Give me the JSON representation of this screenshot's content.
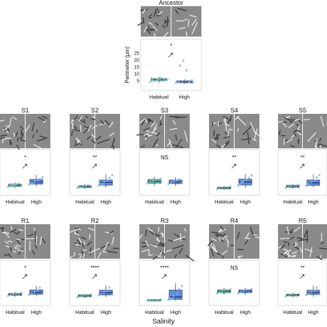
{
  "figure": {
    "xlabel": "Salinity",
    "colors": {
      "habitual_box": "#4fa8a0",
      "habitual_point": "#7cc6bf",
      "high_box": "#3f7ad9",
      "high_point": "#8ab0e8",
      "median": "#1b2f66",
      "frame": "#d0d0d0"
    }
  },
  "chart_data": [
    {
      "type": "box",
      "panel": "Ancestor",
      "title": "Ancestor",
      "ylabel": "Perimeter (µm)",
      "yticks": [
        5,
        10,
        15,
        20,
        25
      ],
      "ylim": [
        0,
        28
      ],
      "categories": [
        "Habitual",
        "High"
      ],
      "significance": "*",
      "trend": "up",
      "series": [
        {
          "category": "Habitual",
          "q1": 5.0,
          "median": 5.8,
          "q3": 6.5,
          "whisker_low": 3.5,
          "whisker_high": 7.8,
          "points": [
            4.2,
            5.1,
            5.6,
            6.0,
            6.3,
            5.4,
            6.8,
            4.9,
            5.9,
            7.1,
            5.2,
            6.1,
            5.7
          ]
        },
        {
          "category": "High",
          "q1": 3.5,
          "median": 4.2,
          "q3": 5.0,
          "whisker_low": 2.8,
          "whisker_high": 6.0,
          "points": [
            3.6,
            4.0,
            4.4,
            4.8,
            3.9,
            5.2,
            4.1,
            16.0,
            19.5,
            12.5,
            4.6,
            3.8
          ]
        }
      ]
    },
    {
      "type": "box",
      "panel": "S1",
      "title": "S1",
      "categories": [
        "Habitual",
        "High"
      ],
      "significance": "*",
      "trend": "up",
      "series": [
        {
          "category": "Habitual",
          "q1": 0.28,
          "median": 0.33,
          "q3": 0.38,
          "whisker_low": 0.2,
          "whisker_high": 0.45,
          "points": [
            0.25,
            0.3,
            0.34,
            0.36,
            0.4,
            0.31,
            0.28,
            0.38,
            0.33
          ]
        },
        {
          "category": "High",
          "q1": 0.38,
          "median": 0.48,
          "q3": 0.6,
          "whisker_low": 0.28,
          "whisker_high": 0.8,
          "points": [
            0.35,
            0.42,
            0.5,
            0.55,
            0.62,
            0.7,
            0.45,
            0.4
          ]
        }
      ]
    },
    {
      "type": "box",
      "panel": "S2",
      "title": "S2",
      "categories": [
        "Habitual",
        "High"
      ],
      "significance": "**",
      "trend": "up",
      "series": [
        {
          "category": "Habitual",
          "q1": 0.28,
          "median": 0.34,
          "q3": 0.4,
          "whisker_low": 0.2,
          "whisker_high": 0.5,
          "points": [
            0.26,
            0.31,
            0.35,
            0.38,
            0.42,
            0.3,
            0.36
          ]
        },
        {
          "category": "High",
          "q1": 0.42,
          "median": 0.58,
          "q3": 0.72,
          "whisker_low": 0.28,
          "whisker_high": 1.05,
          "points": [
            0.4,
            0.5,
            0.62,
            0.7,
            0.85,
            1.0,
            0.55,
            0.45
          ]
        }
      ]
    },
    {
      "type": "box",
      "panel": "S3",
      "title": "S3",
      "categories": [
        "Habitual",
        "High"
      ],
      "significance": "NS",
      "trend": "",
      "series": [
        {
          "category": "Habitual",
          "q1": 0.28,
          "median": 0.34,
          "q3": 0.4,
          "whisker_low": 0.2,
          "whisker_high": 0.48,
          "points": [
            0.27,
            0.32,
            0.36,
            0.38,
            0.3,
            0.42
          ]
        },
        {
          "category": "High",
          "q1": 0.27,
          "median": 0.32,
          "q3": 0.38,
          "whisker_low": 0.2,
          "whisker_high": 0.46,
          "points": [
            0.26,
            0.3,
            0.34,
            0.36,
            0.4,
            0.29
          ]
        }
      ]
    },
    {
      "type": "box",
      "panel": "S4",
      "title": "S4",
      "categories": [
        "Habitual",
        "High"
      ],
      "significance": "**",
      "trend": "up",
      "series": [
        {
          "category": "Habitual",
          "q1": 0.24,
          "median": 0.3,
          "q3": 0.36,
          "whisker_low": 0.18,
          "whisker_high": 0.44,
          "points": [
            0.22,
            0.28,
            0.32,
            0.35,
            0.26,
            0.4
          ]
        },
        {
          "category": "High",
          "q1": 0.5,
          "median": 0.7,
          "q3": 0.9,
          "whisker_low": 0.3,
          "whisker_high": 1.25,
          "points": [
            0.45,
            0.6,
            0.75,
            0.85,
            1.0,
            1.15,
            0.55,
            0.68
          ]
        }
      ]
    },
    {
      "type": "box",
      "panel": "S5",
      "title": "S5",
      "categories": [
        "Habitual",
        "High"
      ],
      "significance": "**",
      "trend": "up",
      "series": [
        {
          "category": "Habitual",
          "q1": 0.3,
          "median": 0.36,
          "q3": 0.44,
          "whisker_low": 0.22,
          "whisker_high": 0.52,
          "points": [
            0.28,
            0.34,
            0.38,
            0.42,
            0.32,
            0.46
          ]
        },
        {
          "category": "High",
          "q1": 0.42,
          "median": 0.58,
          "q3": 0.75,
          "whisker_low": 0.3,
          "whisker_high": 1.1,
          "points": [
            0.4,
            0.5,
            0.62,
            0.72,
            0.9,
            1.05,
            0.55
          ]
        }
      ]
    },
    {
      "type": "box",
      "panel": "R1",
      "title": "R1",
      "categories": [
        "Habitual",
        "High"
      ],
      "significance": "*",
      "trend": "up",
      "series": [
        {
          "category": "Habitual",
          "q1": 0.3,
          "median": 0.34,
          "q3": 0.38,
          "whisker_low": 0.24,
          "whisker_high": 0.44,
          "points": [
            0.28,
            0.32,
            0.35,
            0.37,
            0.31,
            0.4
          ]
        },
        {
          "category": "High",
          "q1": 0.34,
          "median": 0.42,
          "q3": 0.52,
          "whisker_low": 0.26,
          "whisker_high": 0.68,
          "points": [
            0.32,
            0.38,
            0.45,
            0.5,
            0.6,
            0.36
          ]
        }
      ]
    },
    {
      "type": "box",
      "panel": "R2",
      "title": "R2",
      "categories": [
        "Habitual",
        "High"
      ],
      "significance": "****",
      "trend": "up",
      "series": [
        {
          "category": "Habitual",
          "q1": 0.28,
          "median": 0.32,
          "q3": 0.37,
          "whisker_low": 0.22,
          "whisker_high": 0.42,
          "points": [
            0.26,
            0.3,
            0.33,
            0.36,
            0.29,
            0.39
          ]
        },
        {
          "category": "High",
          "q1": 0.36,
          "median": 0.46,
          "q3": 0.58,
          "whisker_low": 0.26,
          "whisker_high": 0.8,
          "points": [
            0.34,
            0.42,
            0.5,
            0.56,
            0.7,
            0.38
          ]
        }
      ]
    },
    {
      "type": "box",
      "panel": "R3",
      "title": "R3",
      "categories": [
        "Habitual",
        "High"
      ],
      "significance": "****",
      "trend": "up",
      "series": [
        {
          "category": "Habitual",
          "q1": 0.3,
          "median": 0.34,
          "q3": 0.38,
          "whisker_low": 0.24,
          "whisker_high": 0.44,
          "points": [
            0.28,
            0.32,
            0.35,
            0.37,
            0.31,
            0.41
          ]
        },
        {
          "category": "High",
          "q1": 0.4,
          "median": 0.7,
          "q3": 1.5,
          "whisker_low": 0.28,
          "whisker_high": 2.3,
          "points": [
            0.35,
            0.5,
            0.8,
            1.1,
            1.6,
            2.0,
            0.6,
            0.45
          ]
        }
      ]
    },
    {
      "type": "box",
      "panel": "R4",
      "title": "R4",
      "categories": [
        "Habitual",
        "High"
      ],
      "significance": "NS",
      "trend": "",
      "series": [
        {
          "category": "Habitual",
          "q1": 0.28,
          "median": 0.32,
          "q3": 0.36,
          "whisker_low": 0.22,
          "whisker_high": 0.42,
          "points": [
            0.26,
            0.3,
            0.33,
            0.35,
            0.29,
            0.38
          ]
        },
        {
          "category": "High",
          "q1": 0.28,
          "median": 0.32,
          "q3": 0.36,
          "whisker_low": 0.22,
          "whisker_high": 0.42,
          "points": [
            0.26,
            0.3,
            0.33,
            0.35,
            0.29,
            0.39
          ]
        }
      ]
    },
    {
      "type": "box",
      "panel": "R5",
      "title": "R5",
      "categories": [
        "Habitual",
        "High"
      ],
      "significance": "**",
      "trend": "up",
      "series": [
        {
          "category": "Habitual",
          "q1": 0.3,
          "median": 0.34,
          "q3": 0.38,
          "whisker_low": 0.24,
          "whisker_high": 0.44,
          "points": [
            0.28,
            0.32,
            0.35,
            0.37,
            0.31,
            0.4
          ]
        },
        {
          "category": "High",
          "q1": 0.36,
          "median": 0.44,
          "q3": 0.55,
          "whisker_low": 0.26,
          "whisker_high": 0.75,
          "points": [
            0.34,
            0.4,
            0.48,
            0.52,
            0.65,
            0.38
          ]
        }
      ]
    }
  ]
}
